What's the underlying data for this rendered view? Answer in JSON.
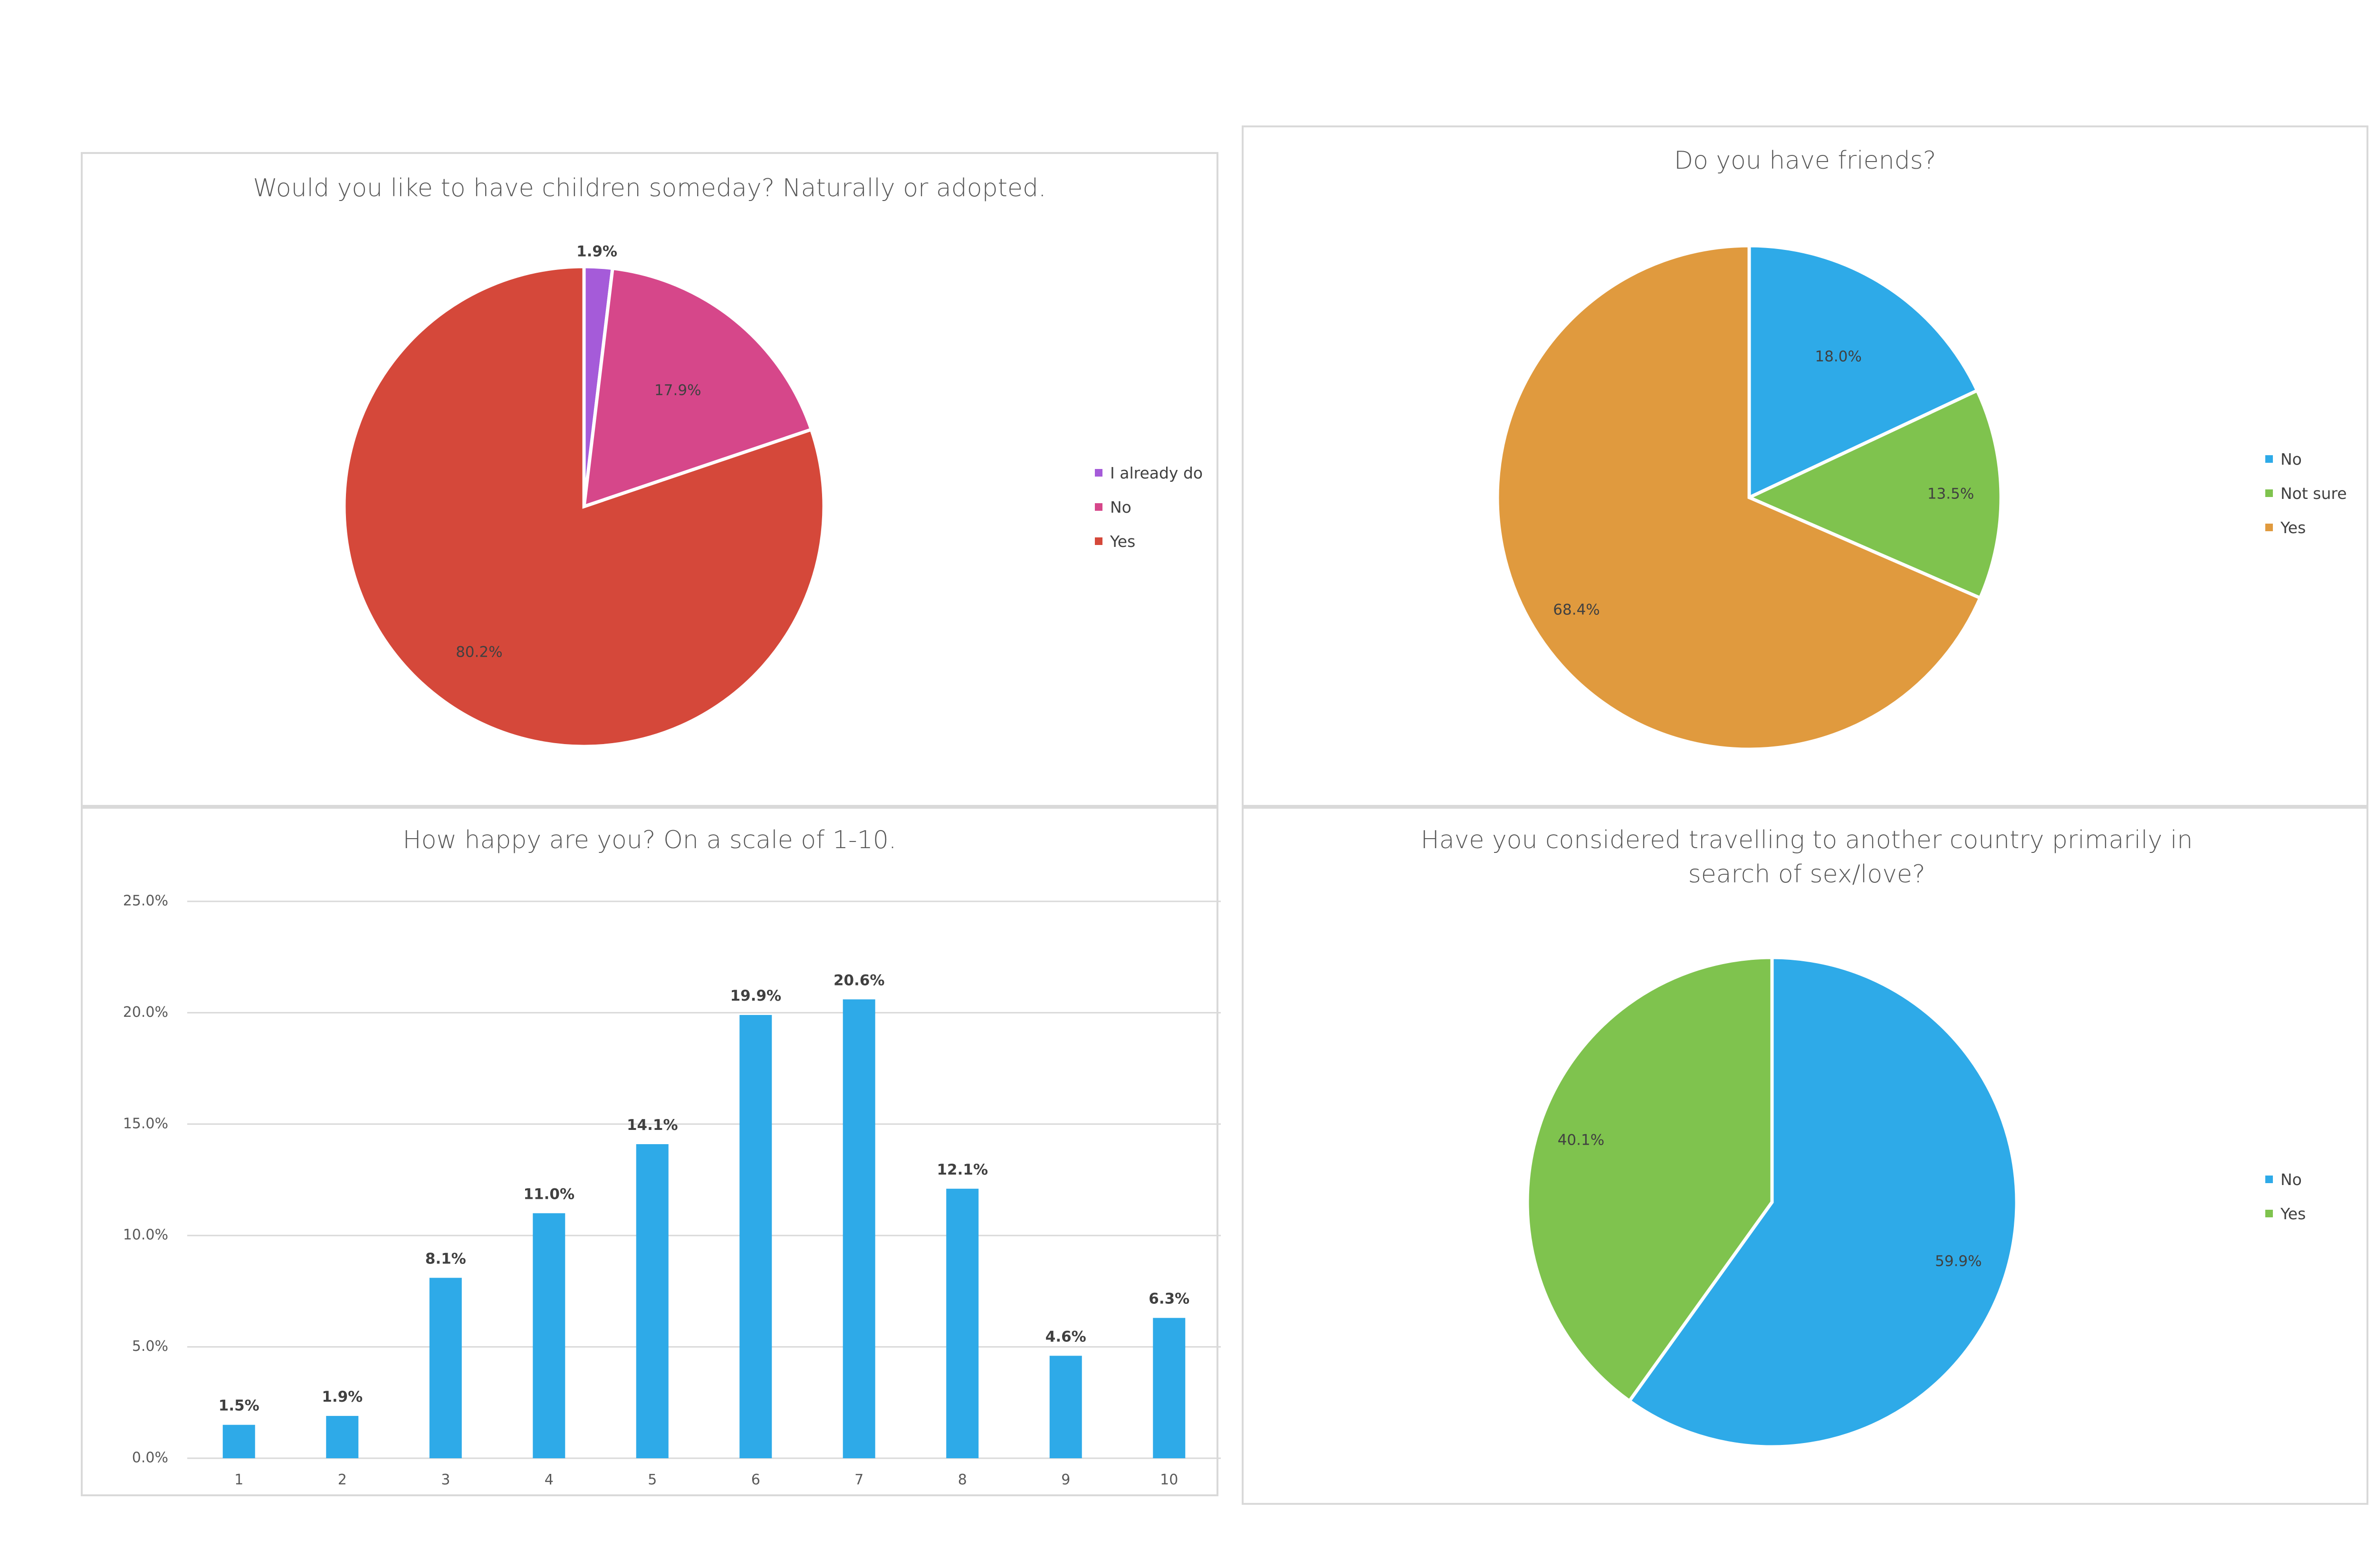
{
  "chart_data": [
    {
      "type": "pie",
      "title": "Would you like to have children someday? Naturally or adopted.",
      "categories": [
        "I already do",
        "No",
        "Yes"
      ],
      "values": [
        1.9,
        17.9,
        80.2
      ],
      "labels": [
        "1.9%",
        "17.9%",
        "80.2%"
      ],
      "colors": [
        "#a55bd9",
        "#d6478a",
        "#d5483a"
      ],
      "legend": "right"
    },
    {
      "type": "pie",
      "title": "Do you have friends?",
      "categories": [
        "No",
        "Not sure",
        "Yes"
      ],
      "values": [
        18.0,
        13.5,
        68.4
      ],
      "labels": [
        "18.0%",
        "13.5%",
        "68.4%"
      ],
      "colors": [
        "#2eaae8",
        "#7fc34e",
        "#e09a3e"
      ],
      "legend": "right"
    },
    {
      "type": "bar",
      "title": "How happy are you? On a scale of 1-10.",
      "categories": [
        "1",
        "2",
        "3",
        "4",
        "5",
        "6",
        "7",
        "8",
        "9",
        "10"
      ],
      "values": [
        1.5,
        1.9,
        8.1,
        11.0,
        14.1,
        19.9,
        20.6,
        12.1,
        4.6,
        6.3
      ],
      "labels": [
        "1.5%",
        "1.9%",
        "8.1%",
        "11.0%",
        "14.1%",
        "19.9%",
        "20.6%",
        "12.1%",
        "4.6%",
        "6.3%"
      ],
      "yticks": [
        "0.0%",
        "5.0%",
        "10.0%",
        "15.0%",
        "20.0%",
        "25.0%"
      ],
      "ylim": [
        0,
        25
      ],
      "grid": true,
      "color": "#2eaae8"
    },
    {
      "type": "pie",
      "title": "Have you considered travelling to another country primarily in search of sex/love?",
      "categories": [
        "No",
        "Yes"
      ],
      "values": [
        59.9,
        40.1
      ],
      "labels": [
        "59.9%",
        "40.1%"
      ],
      "colors": [
        "#2eaae8",
        "#7fc34e"
      ],
      "legend": "right"
    }
  ]
}
